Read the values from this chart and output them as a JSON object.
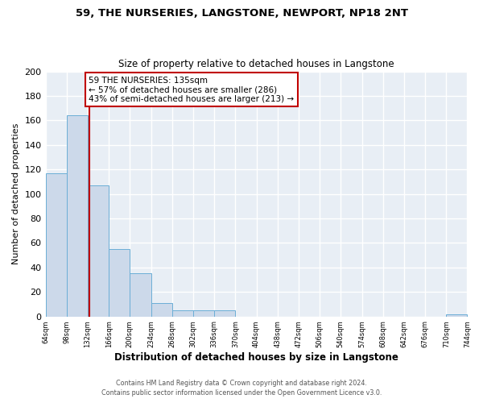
{
  "title": "59, THE NURSERIES, LANGSTONE, NEWPORT, NP18 2NT",
  "subtitle": "Size of property relative to detached houses in Langstone",
  "xlabel": "Distribution of detached houses by size in Langstone",
  "ylabel": "Number of detached properties",
  "bar_color": "#ccd9ea",
  "bar_edge_color": "#6baed6",
  "background_color": "#e8eef5",
  "grid_color": "#ffffff",
  "fig_background": "#ffffff",
  "bin_edges": [
    64,
    98,
    132,
    166,
    200,
    234,
    268,
    302,
    336,
    370,
    404,
    438,
    472,
    506,
    540,
    574,
    608,
    642,
    676,
    710,
    744
  ],
  "bar_heights": [
    117,
    164,
    107,
    55,
    35,
    11,
    5,
    5,
    5,
    0,
    0,
    0,
    0,
    0,
    0,
    0,
    0,
    0,
    0,
    2
  ],
  "red_line_x": 135,
  "ylim": [
    0,
    200
  ],
  "yticks": [
    0,
    20,
    40,
    60,
    80,
    100,
    120,
    140,
    160,
    180,
    200
  ],
  "annotation_line1": "59 THE NURSERIES: 135sqm",
  "annotation_line2": "← 57% of detached houses are smaller (286)",
  "annotation_line3": "43% of semi-detached houses are larger (213) →",
  "annotation_box_facecolor": "#ffffff",
  "annotation_box_edgecolor": "#c00000",
  "footer_line1": "Contains HM Land Registry data © Crown copyright and database right 2024.",
  "footer_line2": "Contains public sector information licensed under the Open Government Licence v3.0."
}
